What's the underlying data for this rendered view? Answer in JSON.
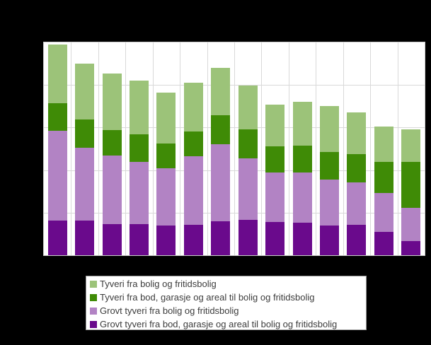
{
  "background_color": "#000000",
  "plot": {
    "background_color": "#ffffff",
    "gridline_color": "#d9d9d9",
    "border_color": "#cccccc",
    "axis_tick_labels_visible": false,
    "title_visible": false
  },
  "chart_data": {
    "type": "bar",
    "stacked": true,
    "orientation": "vertical",
    "title": "",
    "xlabel": "",
    "ylabel": "",
    "ylim": [
      0,
      5
    ],
    "y_gridline_interval": 1,
    "y_units": "gridline units (no numeric axis labels visible)",
    "grid": true,
    "bar_count": 14,
    "categories": [
      "",
      "",
      "",
      "",
      "",
      "",
      "",
      "",
      "",
      "",
      "",
      "",
      "",
      ""
    ],
    "series": [
      {
        "name": "Grovt tyveri fra bod, garasje og areal til bolig og fritidsbolig",
        "color": "#6a0a8c",
        "values": [
          0.81,
          0.81,
          0.73,
          0.73,
          0.69,
          0.72,
          0.8,
          0.83,
          0.78,
          0.76,
          0.7,
          0.72,
          0.55,
          0.33
        ]
      },
      {
        "name": "Grovt tyveri fra bolig og fritidsbolig",
        "color": "#b283c4",
        "values": [
          2.11,
          1.71,
          1.62,
          1.46,
          1.36,
          1.61,
          1.8,
          1.45,
          1.16,
          1.19,
          1.07,
          0.99,
          0.91,
          0.78
        ]
      },
      {
        "name": "Tyveri fra bod, garasje og areal til bolig og fritidsbolig",
        "color": "#3f8b06",
        "values": [
          0.65,
          0.67,
          0.59,
          0.65,
          0.58,
          0.58,
          0.69,
          0.68,
          0.62,
          0.62,
          0.66,
          0.67,
          0.73,
          1.09
        ]
      },
      {
        "name": "Tyveri fra bolig og fritidsbolig",
        "color": "#9cc379",
        "values": [
          1.38,
          1.31,
          1.33,
          1.26,
          1.19,
          1.14,
          1.12,
          1.03,
          0.98,
          1.03,
          1.07,
          0.97,
          0.84,
          0.75
        ]
      }
    ],
    "legend": {
      "position": "bottom",
      "entries": [
        {
          "label": "Tyveri fra bolig og fritidsbolig",
          "color": "#9cc379"
        },
        {
          "label": "Tyveri fra bod, garasje og areal til bolig og fritidsbolig",
          "color": "#3f8b06"
        },
        {
          "label": "Grovt tyveri fra bolig og fritidsbolig",
          "color": "#b283c4"
        },
        {
          "label": "Grovt tyveri fra bod, garasje og areal til bolig og fritidsbolig",
          "color": "#6a0a8c"
        }
      ]
    }
  }
}
